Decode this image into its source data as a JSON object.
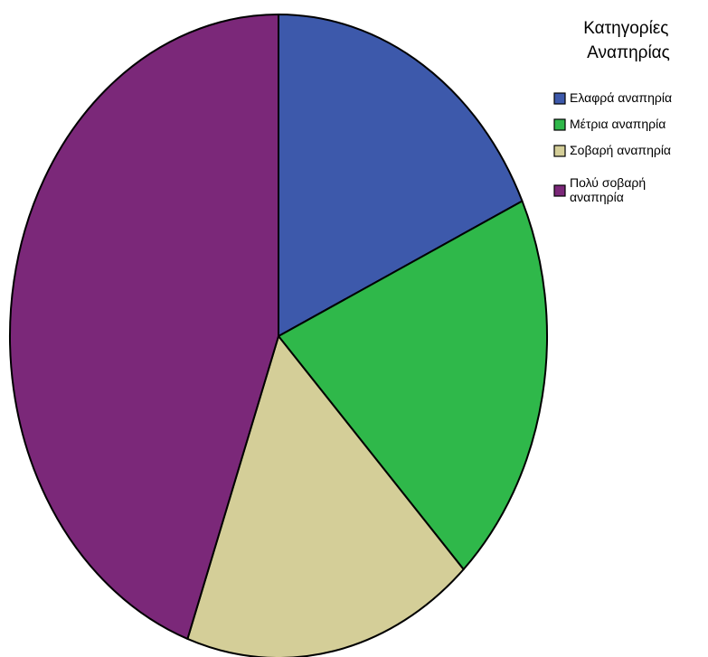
{
  "chart_data": {
    "type": "pie",
    "legend": {
      "title_lines": [
        "Κατηγορίες",
        "Αναπηρίας"
      ],
      "placement": "top-right"
    },
    "slices": [
      {
        "label_lines": [
          "Ελαφρά αναπηρία"
        ],
        "value": 18.1,
        "color": "#3d59ab"
      },
      {
        "label_lines": [
          "Μέτρια αναπηρία"
        ],
        "value": 19.8,
        "color": "#2fb84a"
      },
      {
        "label_lines": [
          "Σοβαρή αναπηρία"
        ],
        "value": 17.6,
        "color": "#d4ce98"
      },
      {
        "label_lines": [
          "Πολύ σοβαρή",
          "αναπηρία"
        ],
        "value": 44.5,
        "color": "#7b2879"
      }
    ]
  }
}
